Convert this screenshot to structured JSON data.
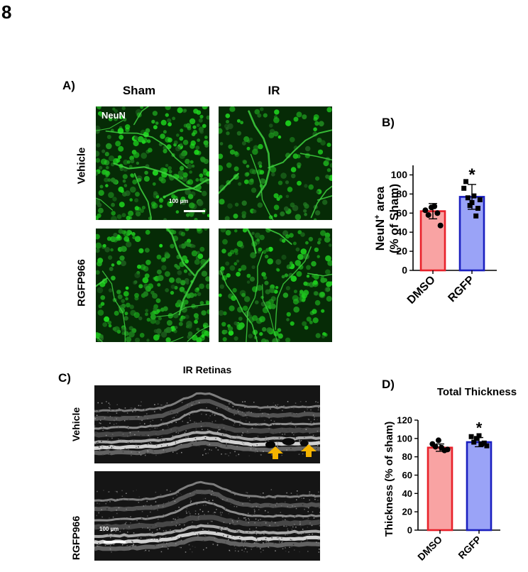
{
  "figure_number": "8",
  "panel_a": {
    "letter": "A)",
    "col_labels": [
      "Sham",
      "IR"
    ],
    "row_labels": [
      "Vehicle",
      "RGFP966"
    ],
    "stain_label": "NeuN",
    "scale_label": "100 µm"
  },
  "panel_c": {
    "letter": "C)",
    "title": "IR Retinas",
    "row_labels": [
      "Vehicle",
      "RGFP966"
    ],
    "scale_label": "100 µm",
    "arrow_color": "#f5b400"
  },
  "chart_data": [
    {
      "panel": "B)",
      "type": "bar",
      "title": "",
      "ylabel_main": "NeuN",
      "ylabel_sup": "+",
      "ylabel_rest": " area",
      "ylabel_line2": "(% of Sham)",
      "categories": [
        "DMSO",
        "RGFP"
      ],
      "values": [
        62,
        77
      ],
      "errors": [
        8,
        13
      ],
      "significance": [
        "",
        "*"
      ],
      "ylim": [
        0,
        110
      ],
      "yticks": [
        0,
        20,
        40,
        60,
        80,
        100
      ],
      "bar_fill": [
        "#f9a3a3",
        "#9aa3f7"
      ],
      "bar_edge": [
        "#e8202a",
        "#1a1fbf"
      ],
      "points": [
        [
          63,
          58,
          66,
          67,
          60,
          47
        ],
        [
          86,
          93,
          76,
          68,
          71,
          78,
          57,
          65,
          74
        ]
      ],
      "point_shapes": [
        "circle",
        "square"
      ]
    },
    {
      "panel": "D)",
      "type": "bar",
      "title": "Total Thickness",
      "ylabel": "Thickness (% of sham)",
      "categories": [
        "DMSO",
        "RGFP"
      ],
      "values": [
        90,
        96
      ],
      "errors": [
        4,
        5
      ],
      "significance": [
        "",
        "*"
      ],
      "ylim": [
        0,
        120
      ],
      "yticks": [
        0,
        20,
        40,
        60,
        80,
        100,
        120
      ],
      "bar_fill": [
        "#f9a3a3",
        "#9aa3f7"
      ],
      "bar_edge": [
        "#e8202a",
        "#1a1fbf"
      ],
      "points": [
        [
          94,
          91,
          98,
          90,
          87,
          88
        ],
        [
          102,
          96,
          100,
          103,
          94,
          95,
          92
        ]
      ],
      "point_shapes": [
        "circle",
        "square"
      ]
    }
  ]
}
